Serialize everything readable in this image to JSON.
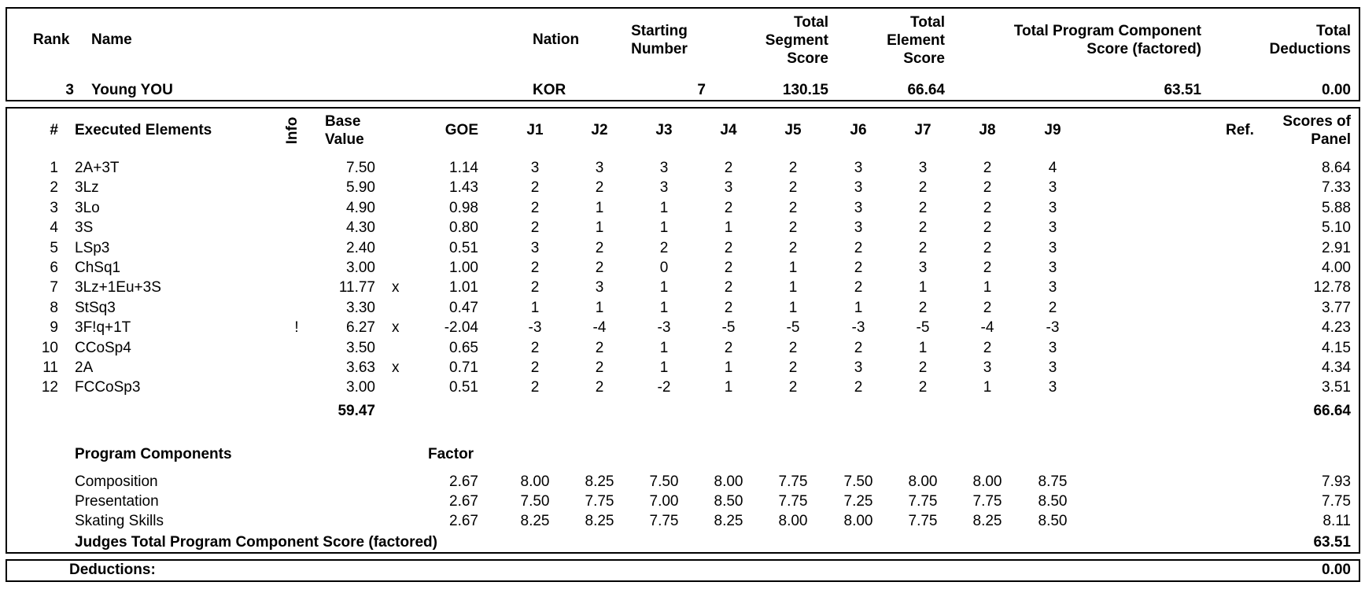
{
  "header": {
    "rank_label": "Rank",
    "name_label": "Name",
    "nation_label": "Nation",
    "starting_number_label": [
      "Starting",
      "Number"
    ],
    "total_segment_score_label": [
      "Total",
      "Segment",
      "Score"
    ],
    "total_element_score_label": [
      "Total",
      "Element",
      "Score"
    ],
    "total_pcs_label": [
      "Total Program Component",
      "Score (factored)"
    ],
    "total_deductions_label": [
      "Total",
      "Deductions"
    ]
  },
  "skater": {
    "rank": "3",
    "name": "Young YOU",
    "nation": "KOR",
    "starting_number": "7",
    "total_segment_score": "130.15",
    "total_element_score": "66.64",
    "total_pcs": "63.51",
    "total_deductions": "0.00"
  },
  "elements_table": {
    "headers": {
      "num": "#",
      "executed_elements": "Executed Elements",
      "info": "Info",
      "base_value": [
        "Base",
        "Value"
      ],
      "goe": "GOE",
      "judges": [
        "J1",
        "J2",
        "J3",
        "J4",
        "J5",
        "J6",
        "J7",
        "J8",
        "J9"
      ],
      "ref": "Ref.",
      "scores_of_panel": [
        "Scores of",
        "Panel"
      ]
    },
    "rows": [
      {
        "num": "1",
        "element": "2A+3T",
        "info": "",
        "base": "7.50",
        "x": "",
        "goe": "1.14",
        "judges": [
          "3",
          "3",
          "3",
          "2",
          "2",
          "3",
          "3",
          "2",
          "4"
        ],
        "score": "8.64"
      },
      {
        "num": "2",
        "element": "3Lz",
        "info": "",
        "base": "5.90",
        "x": "",
        "goe": "1.43",
        "judges": [
          "2",
          "2",
          "3",
          "3",
          "2",
          "3",
          "2",
          "2",
          "3"
        ],
        "score": "7.33"
      },
      {
        "num": "3",
        "element": "3Lo",
        "info": "",
        "base": "4.90",
        "x": "",
        "goe": "0.98",
        "judges": [
          "2",
          "1",
          "1",
          "2",
          "2",
          "3",
          "2",
          "2",
          "3"
        ],
        "score": "5.88"
      },
      {
        "num": "4",
        "element": "3S",
        "info": "",
        "base": "4.30",
        "x": "",
        "goe": "0.80",
        "judges": [
          "2",
          "1",
          "1",
          "1",
          "2",
          "3",
          "2",
          "2",
          "3"
        ],
        "score": "5.10"
      },
      {
        "num": "5",
        "element": "LSp3",
        "info": "",
        "base": "2.40",
        "x": "",
        "goe": "0.51",
        "judges": [
          "3",
          "2",
          "2",
          "2",
          "2",
          "2",
          "2",
          "2",
          "3"
        ],
        "score": "2.91"
      },
      {
        "num": "6",
        "element": "ChSq1",
        "info": "",
        "base": "3.00",
        "x": "",
        "goe": "1.00",
        "judges": [
          "2",
          "2",
          "0",
          "2",
          "1",
          "2",
          "3",
          "2",
          "3"
        ],
        "score": "4.00"
      },
      {
        "num": "7",
        "element": "3Lz+1Eu+3S",
        "info": "",
        "base": "11.77",
        "x": "x",
        "goe": "1.01",
        "judges": [
          "2",
          "3",
          "1",
          "2",
          "1",
          "2",
          "1",
          "1",
          "3"
        ],
        "score": "12.78"
      },
      {
        "num": "8",
        "element": "StSq3",
        "info": "",
        "base": "3.30",
        "x": "",
        "goe": "0.47",
        "judges": [
          "1",
          "1",
          "1",
          "2",
          "1",
          "1",
          "2",
          "2",
          "2"
        ],
        "score": "3.77"
      },
      {
        "num": "9",
        "element": "3F!q+1T",
        "info": "!",
        "base": "6.27",
        "x": "x",
        "goe": "-2.04",
        "judges": [
          "-3",
          "-4",
          "-3",
          "-5",
          "-5",
          "-3",
          "-5",
          "-4",
          "-3"
        ],
        "score": "4.23"
      },
      {
        "num": "10",
        "element": "CCoSp4",
        "info": "",
        "base": "3.50",
        "x": "",
        "goe": "0.65",
        "judges": [
          "2",
          "2",
          "1",
          "2",
          "2",
          "2",
          "1",
          "2",
          "3"
        ],
        "score": "4.15"
      },
      {
        "num": "11",
        "element": "2A",
        "info": "",
        "base": "3.63",
        "x": "x",
        "goe": "0.71",
        "judges": [
          "2",
          "2",
          "1",
          "1",
          "2",
          "3",
          "2",
          "3",
          "3"
        ],
        "score": "4.34"
      },
      {
        "num": "12",
        "element": "FCCoSp3",
        "info": "",
        "base": "3.00",
        "x": "",
        "goe": "0.51",
        "judges": [
          "2",
          "2",
          "-2",
          "1",
          "2",
          "2",
          "2",
          "1",
          "3"
        ],
        "score": "3.51"
      }
    ],
    "base_total": "59.47",
    "score_total": "66.64"
  },
  "program_components": {
    "title": "Program Components",
    "factor_label": "Factor",
    "rows": [
      {
        "name": "Composition",
        "factor": "2.67",
        "judges": [
          "8.00",
          "8.25",
          "7.50",
          "8.00",
          "7.75",
          "7.50",
          "8.00",
          "8.00",
          "8.75"
        ],
        "score": "7.93"
      },
      {
        "name": "Presentation",
        "factor": "2.67",
        "judges": [
          "7.50",
          "7.75",
          "7.00",
          "8.50",
          "7.75",
          "7.25",
          "7.75",
          "7.75",
          "8.50"
        ],
        "score": "7.75"
      },
      {
        "name": "Skating Skills",
        "factor": "2.67",
        "judges": [
          "8.25",
          "8.25",
          "7.75",
          "8.25",
          "8.00",
          "8.00",
          "7.75",
          "8.25",
          "8.50"
        ],
        "score": "8.11"
      }
    ],
    "total_label": "Judges Total Program Component Score (factored)",
    "total_value": "63.51"
  },
  "deductions": {
    "label": "Deductions:",
    "value": "0.00"
  }
}
